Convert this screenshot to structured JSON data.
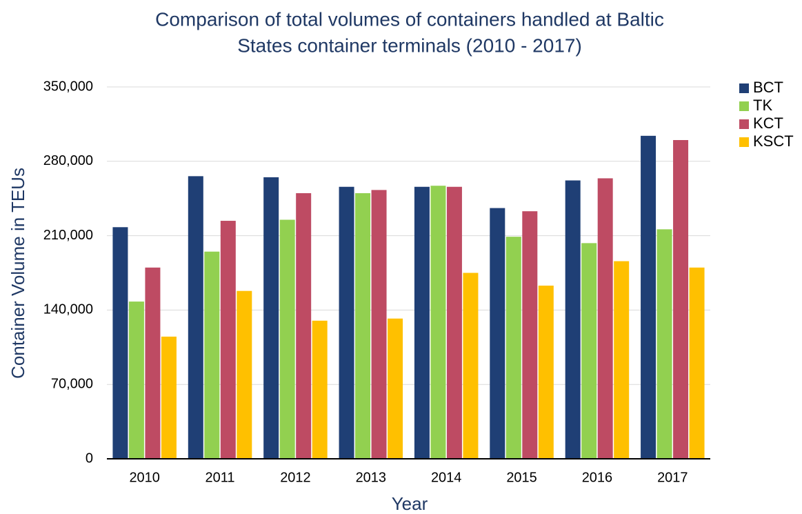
{
  "chart_data": {
    "type": "bar",
    "title": [
      "Comparison of total volumes of containers handled at Baltic",
      "States container terminals (2010 - 2017)"
    ],
    "x_label": "Year",
    "y_label": "Container Volume in TEUs",
    "categories": [
      "2010",
      "2011",
      "2012",
      "2013",
      "2014",
      "2015",
      "2016",
      "2017"
    ],
    "series": [
      {
        "name": "BCT",
        "color": "#1f3f75",
        "values": [
          218000,
          266000,
          265000,
          256000,
          256000,
          236000,
          262000,
          304000
        ]
      },
      {
        "name": "TK",
        "color": "#92d050",
        "values": [
          148000,
          195000,
          225000,
          250000,
          257000,
          209000,
          203000,
          216000
        ]
      },
      {
        "name": "KCT",
        "color": "#be4b63",
        "values": [
          180000,
          224000,
          250000,
          253000,
          256000,
          233000,
          264000,
          300000
        ]
      },
      {
        "name": "KSCT",
        "color": "#ffc000",
        "values": [
          115000,
          158000,
          130000,
          132000,
          175000,
          163000,
          186000,
          180000
        ]
      }
    ],
    "ylim": [
      0,
      350000
    ],
    "yticks": [
      0,
      {
        "value": 70000,
        "label": "70,000"
      },
      {
        "value": 140000,
        "label": "140,000"
      },
      {
        "value": 210000,
        "label": "210,000"
      },
      {
        "value": 280000,
        "label": "280,000"
      },
      {
        "value": 350000,
        "label": "350,000"
      }
    ],
    "grid": true,
    "legend": "top-right"
  }
}
